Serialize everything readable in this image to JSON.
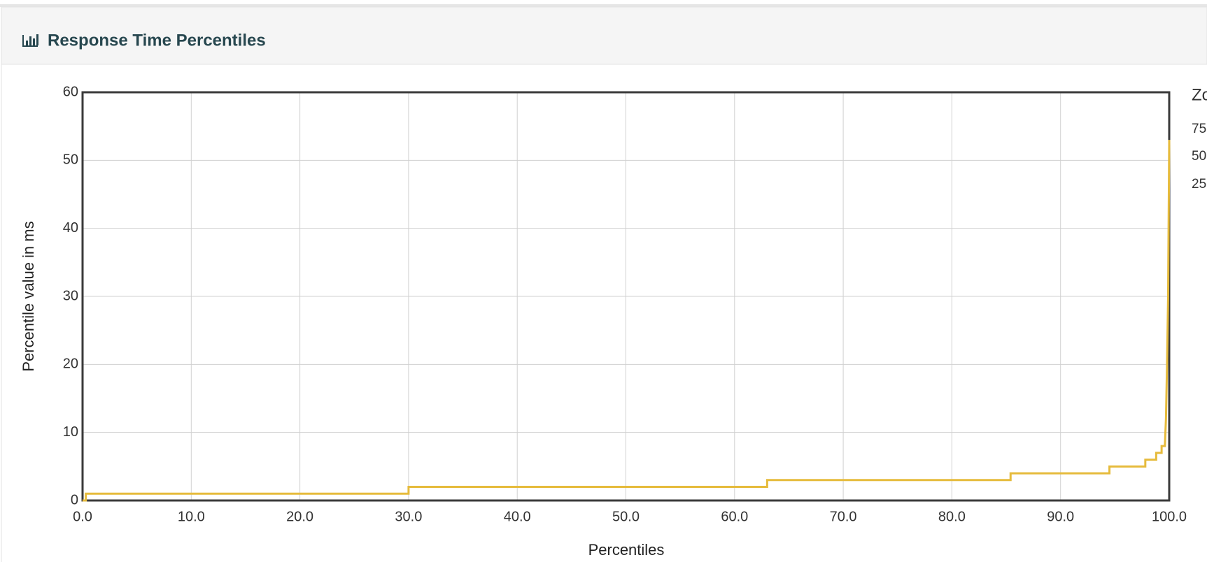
{
  "chart_data": {
    "type": "line",
    "title": "Response Time Percentiles",
    "x_label": "Percentiles",
    "y_label": "Percentile value in ms",
    "x": [
      0,
      0.3,
      0.3,
      30.0,
      30.0,
      63.0,
      63.0,
      85.4,
      85.4,
      94.5,
      94.5,
      97.8,
      97.8,
      98.8,
      98.8,
      99.3,
      99.3,
      99.6,
      99.7,
      99.8,
      99.9,
      100.0
    ],
    "values": [
      0,
      0,
      1,
      1,
      2,
      2,
      3,
      3,
      4,
      4,
      5,
      5,
      6,
      6,
      7,
      7,
      8,
      8,
      12,
      20,
      30,
      53
    ],
    "color": "#e6bb3c",
    "xlim": [
      0,
      100
    ],
    "xticks": [
      {
        "value": 0,
        "label": "0.0"
      },
      {
        "value": 10,
        "label": "10.0"
      },
      {
        "value": 20,
        "label": "20.0"
      },
      {
        "value": 30,
        "label": "30.0"
      },
      {
        "value": 40,
        "label": "40.0"
      },
      {
        "value": 50,
        "label": "50.0"
      },
      {
        "value": 60,
        "label": "60.0"
      },
      {
        "value": 70,
        "label": "70.0"
      },
      {
        "value": 80,
        "label": "80.0"
      },
      {
        "value": 90,
        "label": "90.0"
      },
      {
        "value": 100,
        "label": "100.0"
      }
    ],
    "ylim": [
      0,
      60
    ],
    "yticks": [
      0,
      10,
      20,
      30,
      40,
      50,
      60
    ],
    "grid": true,
    "zoom_panel": [
      "Zo",
      "75",
      "50",
      "25"
    ]
  }
}
